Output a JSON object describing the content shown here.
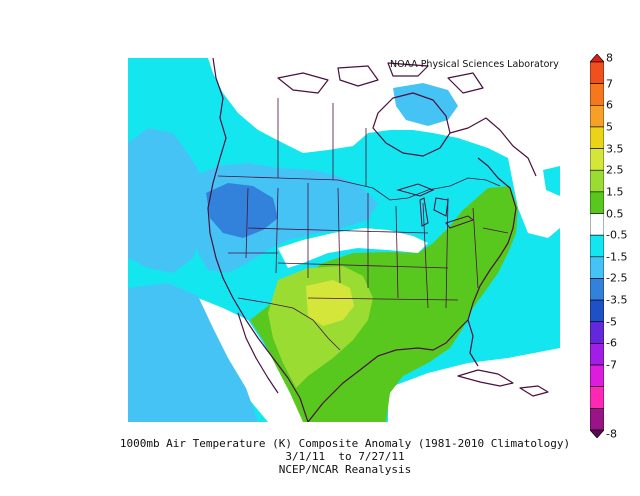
{
  "header": {
    "lab": "NOAA Physical Sciences Laboratory"
  },
  "colorbar": {
    "labels": [
      "8",
      "7",
      "6",
      "5",
      "3.5",
      "2.5",
      "1.5",
      "0.5",
      "-0.5",
      "-1.5",
      "-2.5",
      "-3.5",
      "-5",
      "-6",
      "-7",
      "-8"
    ],
    "colors": [
      "#dc1e1e",
      "#f0501e",
      "#f5781e",
      "#f7a028",
      "#ebd319",
      "#d5e63a",
      "#9bdc32",
      "#58c81e",
      "#ffffff",
      "#14e6f0",
      "#46c3f5",
      "#3282dc",
      "#1e50c8",
      "#6428dc",
      "#a01ee6",
      "#dc1edc",
      "#ff28b4",
      "#9b1487",
      "#5a0a50"
    ]
  },
  "caption": {
    "line1": "1000mb Air Temperature (K) Composite Anomaly (1981-2010 Climatology)",
    "line2": "3/1/11  to 7/27/11",
    "line3": "NCEP/NCAR Reanalysis"
  }
}
